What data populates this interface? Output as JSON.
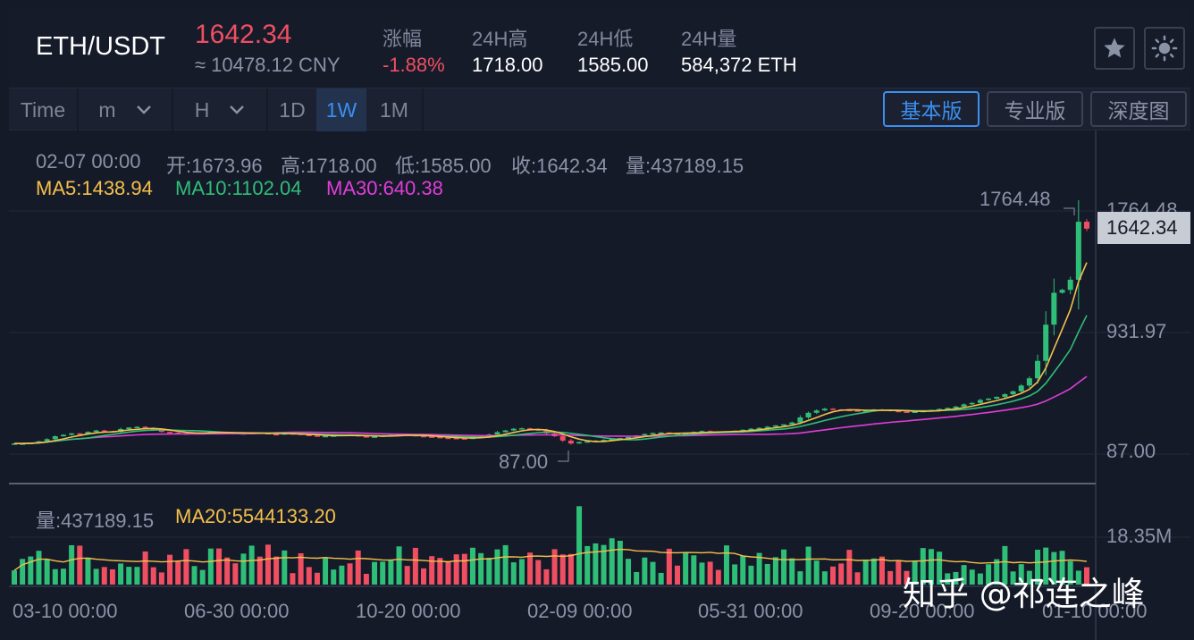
{
  "header": {
    "pair": "ETH/USDT",
    "price": "1642.34",
    "price_cny": "≈ 10478.12 CNY",
    "stats": [
      {
        "label": "涨幅",
        "value": "-1.88%"
      },
      {
        "label": "24H高",
        "value": "1718.00"
      },
      {
        "label": "24H低",
        "value": "1585.00"
      },
      {
        "label": "24H量",
        "value": "584,372 ETH"
      }
    ],
    "star_icon": "star-icon",
    "theme_icon": "sun-icon"
  },
  "toolbar": {
    "time_label": "Time",
    "minute_label": "m",
    "hour_label": "H",
    "day_label": "1D",
    "week_label": "1W",
    "month_label": "1M",
    "active_interval": "1W",
    "views": [
      "基本版",
      "专业版",
      "深度图"
    ],
    "active_view": "基本版"
  },
  "info": {
    "date": "02-07 00:00",
    "open": "开:1673.96",
    "high": "高:1718.00",
    "low": "低:1585.00",
    "close": "收:1642.34",
    "volume": "量:437189.15",
    "ma5": "MA5:1438.94",
    "ma10": "MA10:1102.04",
    "ma30": "MA30:640.38",
    "vol_label": "量:437189.15",
    "vol_ma20": "MA20:5544133.20"
  },
  "price_axis": {
    "max_label": "1764.48",
    "current": "1642.34",
    "mid": "931.97",
    "low": "87.00",
    "vol_max": "18.35M"
  },
  "annotations": {
    "high_marker": "1764.48",
    "low_marker": "87.00"
  },
  "date_axis": [
    "03-10 00:00",
    "06-30 00:00",
    "10-20 00:00",
    "02-09 00:00",
    "05-31 00:00",
    "09-20 00:00",
    "01-10 00:00"
  ],
  "watermark": "知乎 @祁连之峰",
  "colors": {
    "up": "#2fbe77",
    "down": "#f04f62",
    "ma5": "#f5c04a",
    "ma10": "#2fbe77",
    "ma30": "#e03ed8",
    "accent": "#3a8ff0"
  },
  "chart_data": {
    "type": "candlestick",
    "interval": "1W",
    "price_range": [
      87.0,
      1764.48
    ],
    "weekly_close_estimate": [
      160,
      160,
      165,
      175,
      190,
      210,
      220,
      230,
      225,
      240,
      250,
      245,
      240,
      260,
      270,
      275,
      265,
      250,
      240,
      235,
      230,
      228,
      232,
      236,
      240,
      238,
      232,
      228,
      230,
      235,
      232,
      225,
      222,
      230,
      228,
      220,
      215,
      210,
      212,
      215,
      222,
      218,
      210,
      205,
      208,
      215,
      220,
      222,
      218,
      212,
      208,
      205,
      200,
      198,
      196,
      195,
      200,
      210,
      222,
      238,
      250,
      262,
      265,
      258,
      250,
      230,
      210,
      180,
      160,
      170,
      175,
      180,
      185,
      192,
      198,
      205,
      215,
      225,
      232,
      236,
      230,
      228,
      232,
      240,
      246,
      240,
      238,
      242,
      248,
      255,
      262,
      268,
      276,
      285,
      292,
      305,
      340,
      372,
      388,
      400,
      395,
      392,
      388,
      384,
      388,
      395,
      392,
      385,
      380,
      378,
      380,
      385,
      392,
      398,
      405,
      415,
      430,
      440,
      460,
      470,
      482,
      500,
      520,
      560,
      610,
      730,
      980,
      1200,
      1220,
      1290,
      1690,
      1642.34
    ]
  }
}
